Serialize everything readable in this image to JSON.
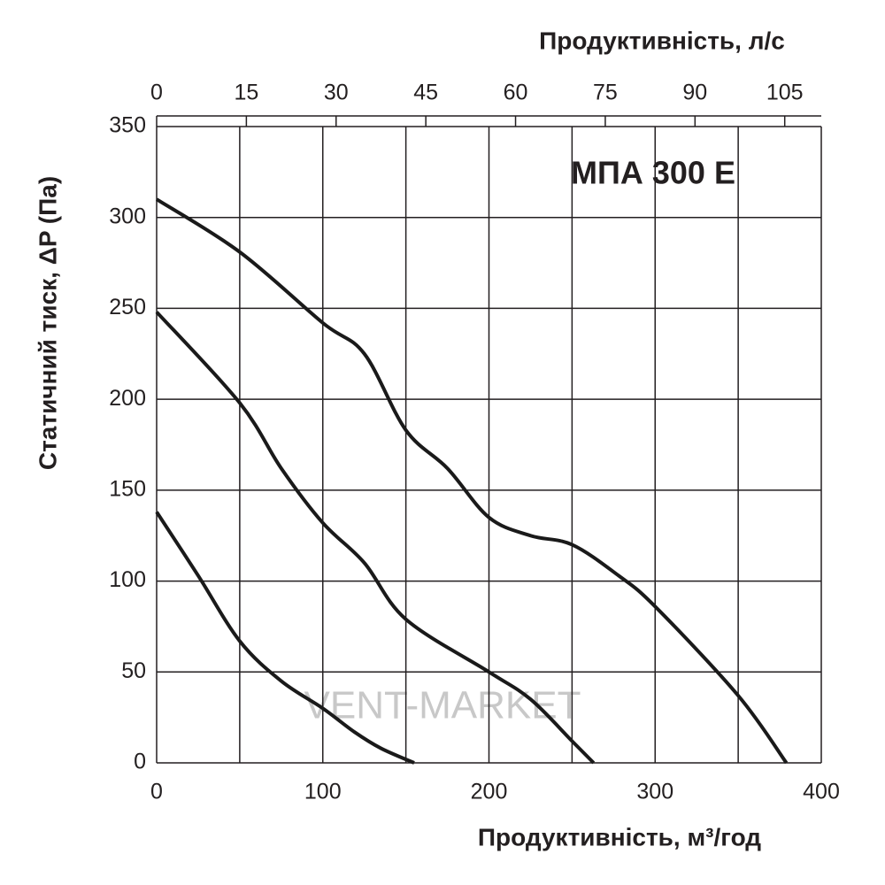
{
  "chart_data": {
    "type": "line",
    "title": "МПА 300 Е",
    "xlabel": "Продуктивність, м³/год",
    "x2label": "Продуктивність, л/с",
    "ylabel": "Статичний тиск, ΔP (Па)",
    "watermark": "VENT-MARKET",
    "xlim": [
      0,
      400
    ],
    "xticks": [
      0,
      100,
      200,
      300,
      400
    ],
    "xminor": [
      50,
      150,
      250,
      350
    ],
    "x2lim": [
      0,
      111.11
    ],
    "x2ticks": [
      0,
      15,
      30,
      45,
      60,
      75,
      90,
      105
    ],
    "ylim": [
      0,
      350
    ],
    "yticks": [
      0,
      50,
      100,
      150,
      200,
      250,
      300,
      350
    ],
    "grid": true,
    "series": [
      {
        "color": "#1a1a1a",
        "x": [
          0,
          50,
          100,
          125,
          150,
          175,
          200,
          225,
          250,
          278,
          300,
          350,
          379
        ],
        "values": [
          310,
          281,
          242,
          225,
          183,
          162,
          135,
          125,
          120,
          103,
          86,
          37,
          0
        ]
      },
      {
        "color": "#1a1a1a",
        "x": [
          0,
          50,
          75,
          100,
          125,
          150,
          200,
          225,
          250,
          263
        ],
        "values": [
          248,
          198,
          162,
          132,
          110,
          79,
          50,
          35,
          12,
          0
        ]
      },
      {
        "color": "#1a1a1a",
        "x": [
          0,
          25,
          50,
          75,
          100,
          119,
          135,
          155
        ],
        "values": [
          138,
          103,
          67,
          45,
          30,
          17,
          8,
          0
        ]
      }
    ]
  }
}
